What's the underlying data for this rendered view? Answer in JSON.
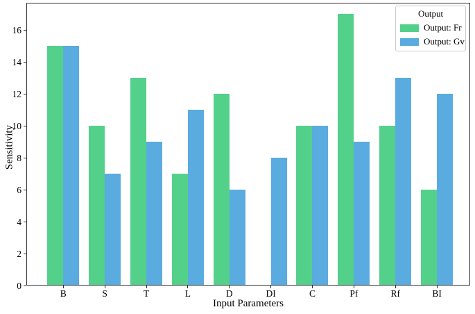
{
  "chart_data": {
    "type": "bar",
    "title": "",
    "xlabel": "Input Parameters",
    "ylabel": "Sensitivity",
    "categories": [
      "B",
      "S",
      "T",
      "L",
      "D",
      "DI",
      "C",
      "Pf",
      "Rf",
      "BI"
    ],
    "series": [
      {
        "name": "Output: Fr",
        "short": "fr",
        "color": "#53d18a",
        "values": [
          15,
          10,
          13,
          7,
          12,
          0,
          10,
          17,
          10,
          6
        ]
      },
      {
        "name": "Output: Gv",
        "short": "gv",
        "color": "#5aabe0",
        "values": [
          15,
          7,
          9,
          11,
          6,
          8,
          10,
          9,
          13,
          12
        ]
      }
    ],
    "legend": {
      "title": "Output",
      "position": "upper right"
    },
    "ylim": [
      0,
      17.7
    ],
    "yticks": [
      0,
      2,
      4,
      6,
      8,
      10,
      12,
      14,
      16
    ],
    "xlim": [
      -0.89,
      9.8
    ],
    "bar_width": 0.38,
    "grid": false,
    "axis_color": "#2e2e2e",
    "tick_label_color": "#000000"
  }
}
